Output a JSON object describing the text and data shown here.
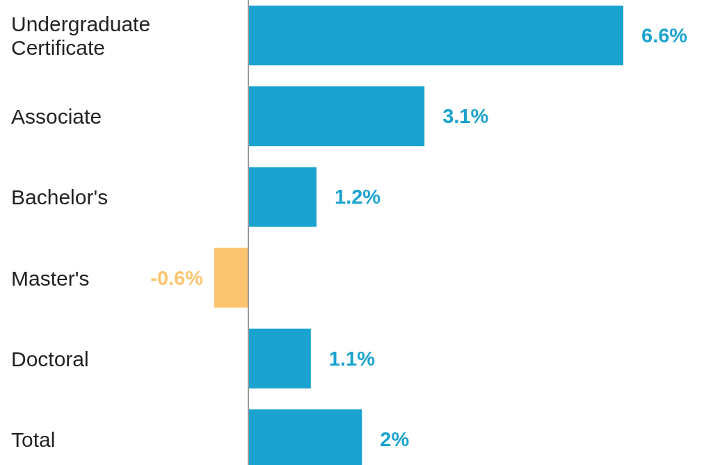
{
  "chart_data": {
    "type": "bar",
    "orientation": "horizontal",
    "categories": [
      "Undergraduate Certificate",
      "Associate",
      "Bachelor's",
      "Master's",
      "Doctoral",
      "Total"
    ],
    "values": [
      6.6,
      3.1,
      1.2,
      -0.6,
      1.1,
      2
    ],
    "colors": [
      "#1ba3cf",
      "#1ba3cf",
      "#1ba3cf",
      "#fbc46f",
      "#1ba3cf",
      "#1ba3cf"
    ],
    "value_labels": [
      "6.6%",
      "3.1%",
      "1.2%",
      "-0.6%",
      "1.1%",
      "2%"
    ]
  }
}
